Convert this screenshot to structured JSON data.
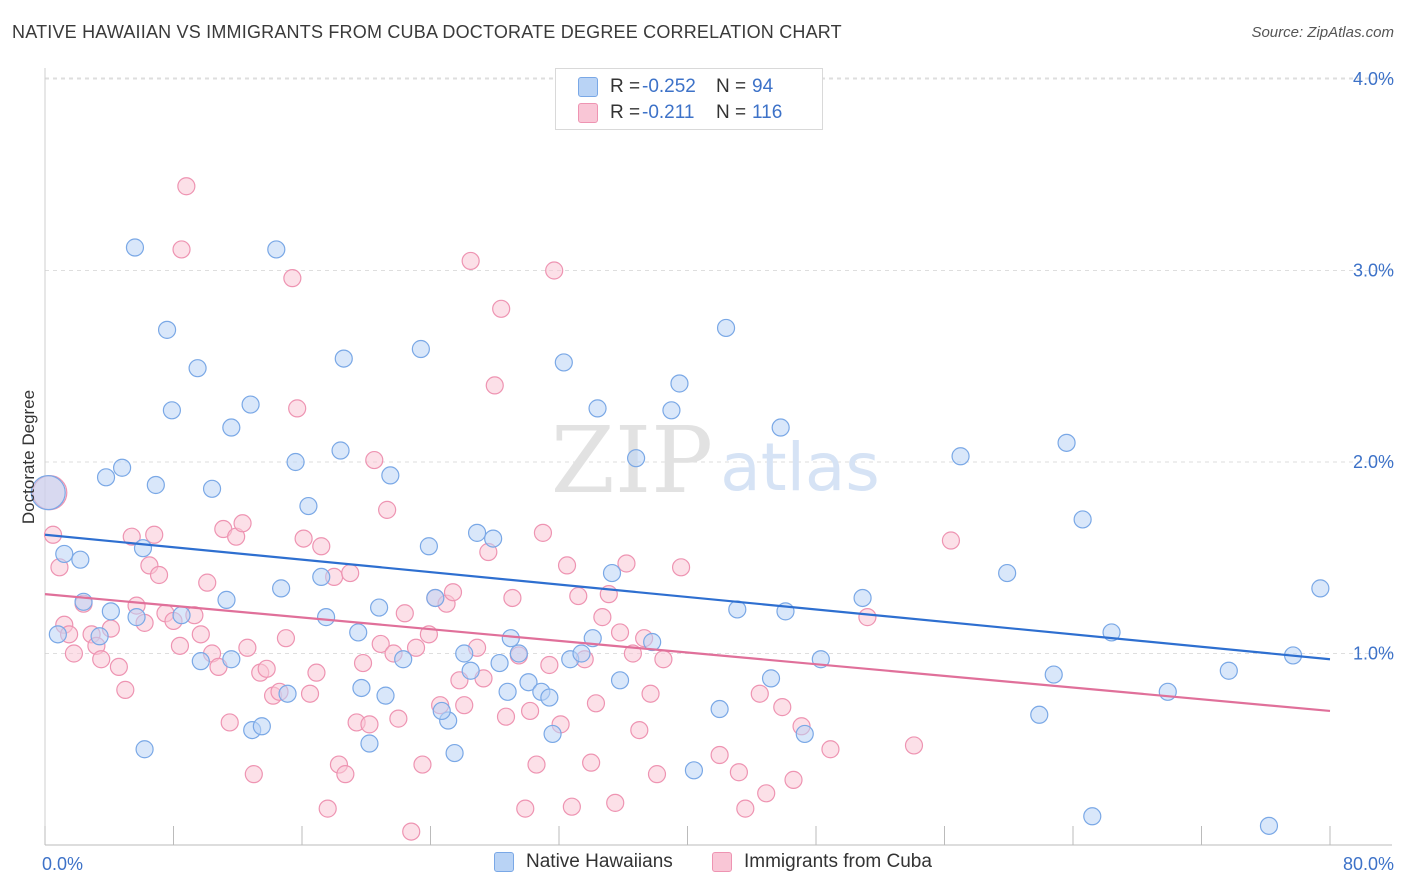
{
  "title": "NATIVE HAWAIIAN VS IMMIGRANTS FROM CUBA DOCTORATE DEGREE CORRELATION CHART",
  "source": "Source: ZipAtlas.com",
  "watermark": {
    "zip": "ZIP",
    "atlas": "atlas"
  },
  "legend": {
    "rows": [
      {
        "r_label": "R =",
        "r_value": "-0.252",
        "n_label": "N =",
        "n_value": "94"
      },
      {
        "r_label": "R =",
        "r_value": "-0.211",
        "n_label": "N =",
        "n_value": "116"
      }
    ]
  },
  "chart_data": {
    "type": "scatter",
    "title": "NATIVE HAWAIIAN VS IMMIGRANTS FROM CUBA DOCTORATE DEGREE CORRELATION CHART",
    "xlabel": "",
    "ylabel": "Doctorate Degree",
    "xlim": [
      0,
      80
    ],
    "ylim": [
      0,
      4.1
    ],
    "x_tick_labels": [
      "0.0%",
      "80.0%"
    ],
    "y_ticks": [
      1.0,
      2.0,
      3.0,
      4.0
    ],
    "y_tick_labels": [
      "1.0%",
      "2.0%",
      "3.0%",
      "4.0%"
    ],
    "grid": "horizontal dashed",
    "legend_position": "top-center",
    "series": [
      {
        "name": "Native Hawaiians",
        "color": "#7aa8e6",
        "fill": "#b9d3f5",
        "r": -0.252,
        "n": 94,
        "trend": {
          "x0": 0,
          "y0": 1.62,
          "x1": 80,
          "y1": 0.97,
          "color": "#2e6fd0"
        },
        "points": [
          [
            0.2,
            1.84
          ],
          [
            1.2,
            1.52
          ],
          [
            0.8,
            1.1
          ],
          [
            2.2,
            1.49
          ],
          [
            5.6,
            3.12
          ],
          [
            7.6,
            2.69
          ],
          [
            8.5,
            1.2
          ],
          [
            4.8,
            1.97
          ],
          [
            3.8,
            1.92
          ],
          [
            6.9,
            1.88
          ],
          [
            7.9,
            2.27
          ],
          [
            9.5,
            2.49
          ],
          [
            11.6,
            2.18
          ],
          [
            11.3,
            1.28
          ],
          [
            12.8,
            2.3
          ],
          [
            14.4,
            3.11
          ],
          [
            15.6,
            2.0
          ],
          [
            16.4,
            1.77
          ],
          [
            17.2,
            1.4
          ],
          [
            18.6,
            2.54
          ],
          [
            18.4,
            2.06
          ],
          [
            19.5,
            1.11
          ],
          [
            20.8,
            1.24
          ],
          [
            21.5,
            1.93
          ],
          [
            22.3,
            0.97
          ],
          [
            23.4,
            2.59
          ],
          [
            23.9,
            1.56
          ],
          [
            24.3,
            1.29
          ],
          [
            25.1,
            0.65
          ],
          [
            24.7,
            0.7
          ],
          [
            26.1,
            1.0
          ],
          [
            26.5,
            0.91
          ],
          [
            26.9,
            1.63
          ],
          [
            27.9,
            1.6
          ],
          [
            28.3,
            0.95
          ],
          [
            29.0,
            1.08
          ],
          [
            29.5,
            1.0
          ],
          [
            30.1,
            0.85
          ],
          [
            30.9,
            0.8
          ],
          [
            31.4,
            0.77
          ],
          [
            31.6,
            0.58
          ],
          [
            32.3,
            2.52
          ],
          [
            32.7,
            0.97
          ],
          [
            34.1,
            1.08
          ],
          [
            34.4,
            2.28
          ],
          [
            35.3,
            1.42
          ],
          [
            35.8,
            0.86
          ],
          [
            36.8,
            2.02
          ],
          [
            37.8,
            1.06
          ],
          [
            39.5,
            2.41
          ],
          [
            39.0,
            2.27
          ],
          [
            40.4,
            0.39
          ],
          [
            42.0,
            0.71
          ],
          [
            42.4,
            2.7
          ],
          [
            43.1,
            1.23
          ],
          [
            45.2,
            0.87
          ],
          [
            46.1,
            1.22
          ],
          [
            45.8,
            2.18
          ],
          [
            47.3,
            0.58
          ],
          [
            48.3,
            0.97
          ],
          [
            50.9,
            1.29
          ],
          [
            57.0,
            2.03
          ],
          [
            59.9,
            1.42
          ],
          [
            61.9,
            0.68
          ],
          [
            62.8,
            0.89
          ],
          [
            63.6,
            2.1
          ],
          [
            64.6,
            1.7
          ],
          [
            65.2,
            0.15
          ],
          [
            66.4,
            1.11
          ],
          [
            69.9,
            0.8
          ],
          [
            73.7,
            0.91
          ],
          [
            76.2,
            0.1
          ],
          [
            77.7,
            0.99
          ],
          [
            79.4,
            1.34
          ],
          [
            5.7,
            1.19
          ],
          [
            4.1,
            1.22
          ],
          [
            3.4,
            1.09
          ],
          [
            2.4,
            1.27
          ],
          [
            6.1,
            1.55
          ],
          [
            11.6,
            0.97
          ],
          [
            10.4,
            1.86
          ],
          [
            14.7,
            1.34
          ],
          [
            17.5,
            1.19
          ],
          [
            19.7,
            0.82
          ],
          [
            21.2,
            0.78
          ],
          [
            15.1,
            0.79
          ],
          [
            12.9,
            0.6
          ],
          [
            13.5,
            0.62
          ],
          [
            9.7,
            0.96
          ],
          [
            6.2,
            0.5
          ],
          [
            20.2,
            0.53
          ],
          [
            25.5,
            0.48
          ],
          [
            28.8,
            0.8
          ],
          [
            33.4,
            1.0
          ]
        ]
      },
      {
        "name": "Immigrants from Cuba",
        "color": "#ee94b2",
        "fill": "#f9c6d6",
        "r": -0.211,
        "n": 116,
        "trend": {
          "x0": 0,
          "y0": 1.31,
          "x1": 80,
          "y1": 0.7,
          "color": "#e0709a"
        },
        "points": [
          [
            0.3,
            1.84
          ],
          [
            0.5,
            1.62
          ],
          [
            0.9,
            1.45
          ],
          [
            1.2,
            1.15
          ],
          [
            1.5,
            1.1
          ],
          [
            1.8,
            1.0
          ],
          [
            2.4,
            1.26
          ],
          [
            2.9,
            1.1
          ],
          [
            3.2,
            1.04
          ],
          [
            3.5,
            0.97
          ],
          [
            4.1,
            1.13
          ],
          [
            4.6,
            0.93
          ],
          [
            5.0,
            0.81
          ],
          [
            5.4,
            1.61
          ],
          [
            5.7,
            1.25
          ],
          [
            6.2,
            1.16
          ],
          [
            6.5,
            1.46
          ],
          [
            6.8,
            1.62
          ],
          [
            7.1,
            1.41
          ],
          [
            7.5,
            1.21
          ],
          [
            8.0,
            1.17
          ],
          [
            8.4,
            1.04
          ],
          [
            8.8,
            3.44
          ],
          [
            8.5,
            3.11
          ],
          [
            9.3,
            1.2
          ],
          [
            9.7,
            1.1
          ],
          [
            10.1,
            1.37
          ],
          [
            10.4,
            1.0
          ],
          [
            10.8,
            0.93
          ],
          [
            11.1,
            1.65
          ],
          [
            11.5,
            0.64
          ],
          [
            11.9,
            1.61
          ],
          [
            12.3,
            1.68
          ],
          [
            12.6,
            1.03
          ],
          [
            13.0,
            0.37
          ],
          [
            13.4,
            0.9
          ],
          [
            13.8,
            0.92
          ],
          [
            14.2,
            0.78
          ],
          [
            14.6,
            0.8
          ],
          [
            15.0,
            1.08
          ],
          [
            15.4,
            2.96
          ],
          [
            15.7,
            2.28
          ],
          [
            16.1,
            1.6
          ],
          [
            16.5,
            0.79
          ],
          [
            16.9,
            0.9
          ],
          [
            17.2,
            1.56
          ],
          [
            17.6,
            0.19
          ],
          [
            18.0,
            1.4
          ],
          [
            18.3,
            0.42
          ],
          [
            18.7,
            0.37
          ],
          [
            19.0,
            1.42
          ],
          [
            19.4,
            0.64
          ],
          [
            19.8,
            0.95
          ],
          [
            20.2,
            0.63
          ],
          [
            20.5,
            2.01
          ],
          [
            20.9,
            1.05
          ],
          [
            21.3,
            1.75
          ],
          [
            21.7,
            1.0
          ],
          [
            22.0,
            0.66
          ],
          [
            22.4,
            1.21
          ],
          [
            22.8,
            0.07
          ],
          [
            23.1,
            1.03
          ],
          [
            23.5,
            0.42
          ],
          [
            23.9,
            1.1
          ],
          [
            24.3,
            1.29
          ],
          [
            24.6,
            0.73
          ],
          [
            25.0,
            1.26
          ],
          [
            25.4,
            1.32
          ],
          [
            25.8,
            0.86
          ],
          [
            26.1,
            0.73
          ],
          [
            26.5,
            3.05
          ],
          [
            26.9,
            1.03
          ],
          [
            27.3,
            0.87
          ],
          [
            27.6,
            1.53
          ],
          [
            28.0,
            2.4
          ],
          [
            28.4,
            2.8
          ],
          [
            28.7,
            0.67
          ],
          [
            29.1,
            1.29
          ],
          [
            29.5,
            0.99
          ],
          [
            29.9,
            0.19
          ],
          [
            30.2,
            0.7
          ],
          [
            30.6,
            0.42
          ],
          [
            31.0,
            1.63
          ],
          [
            31.4,
            0.94
          ],
          [
            31.7,
            3.0
          ],
          [
            32.1,
            0.63
          ],
          [
            32.5,
            1.46
          ],
          [
            32.8,
            0.2
          ],
          [
            33.2,
            1.3
          ],
          [
            33.6,
            0.97
          ],
          [
            34.0,
            0.43
          ],
          [
            34.3,
            0.74
          ],
          [
            34.7,
            1.19
          ],
          [
            35.1,
            1.31
          ],
          [
            35.5,
            0.22
          ],
          [
            35.8,
            1.11
          ],
          [
            36.2,
            1.47
          ],
          [
            36.6,
            1.0
          ],
          [
            37.0,
            0.6
          ],
          [
            37.3,
            1.08
          ],
          [
            37.7,
            0.79
          ],
          [
            38.1,
            0.37
          ],
          [
            38.5,
            0.97
          ],
          [
            39.6,
            1.45
          ],
          [
            42.0,
            0.47
          ],
          [
            43.2,
            0.38
          ],
          [
            43.6,
            0.19
          ],
          [
            44.5,
            0.79
          ],
          [
            44.9,
            0.27
          ],
          [
            45.9,
            0.72
          ],
          [
            46.6,
            0.34
          ],
          [
            47.1,
            0.62
          ],
          [
            48.9,
            0.5
          ],
          [
            51.2,
            1.19
          ],
          [
            54.1,
            0.52
          ],
          [
            56.4,
            1.59
          ]
        ]
      }
    ]
  },
  "bottom_legend": [
    {
      "label": "Native Hawaiians"
    },
    {
      "label": "Immigrants from Cuba"
    }
  ]
}
